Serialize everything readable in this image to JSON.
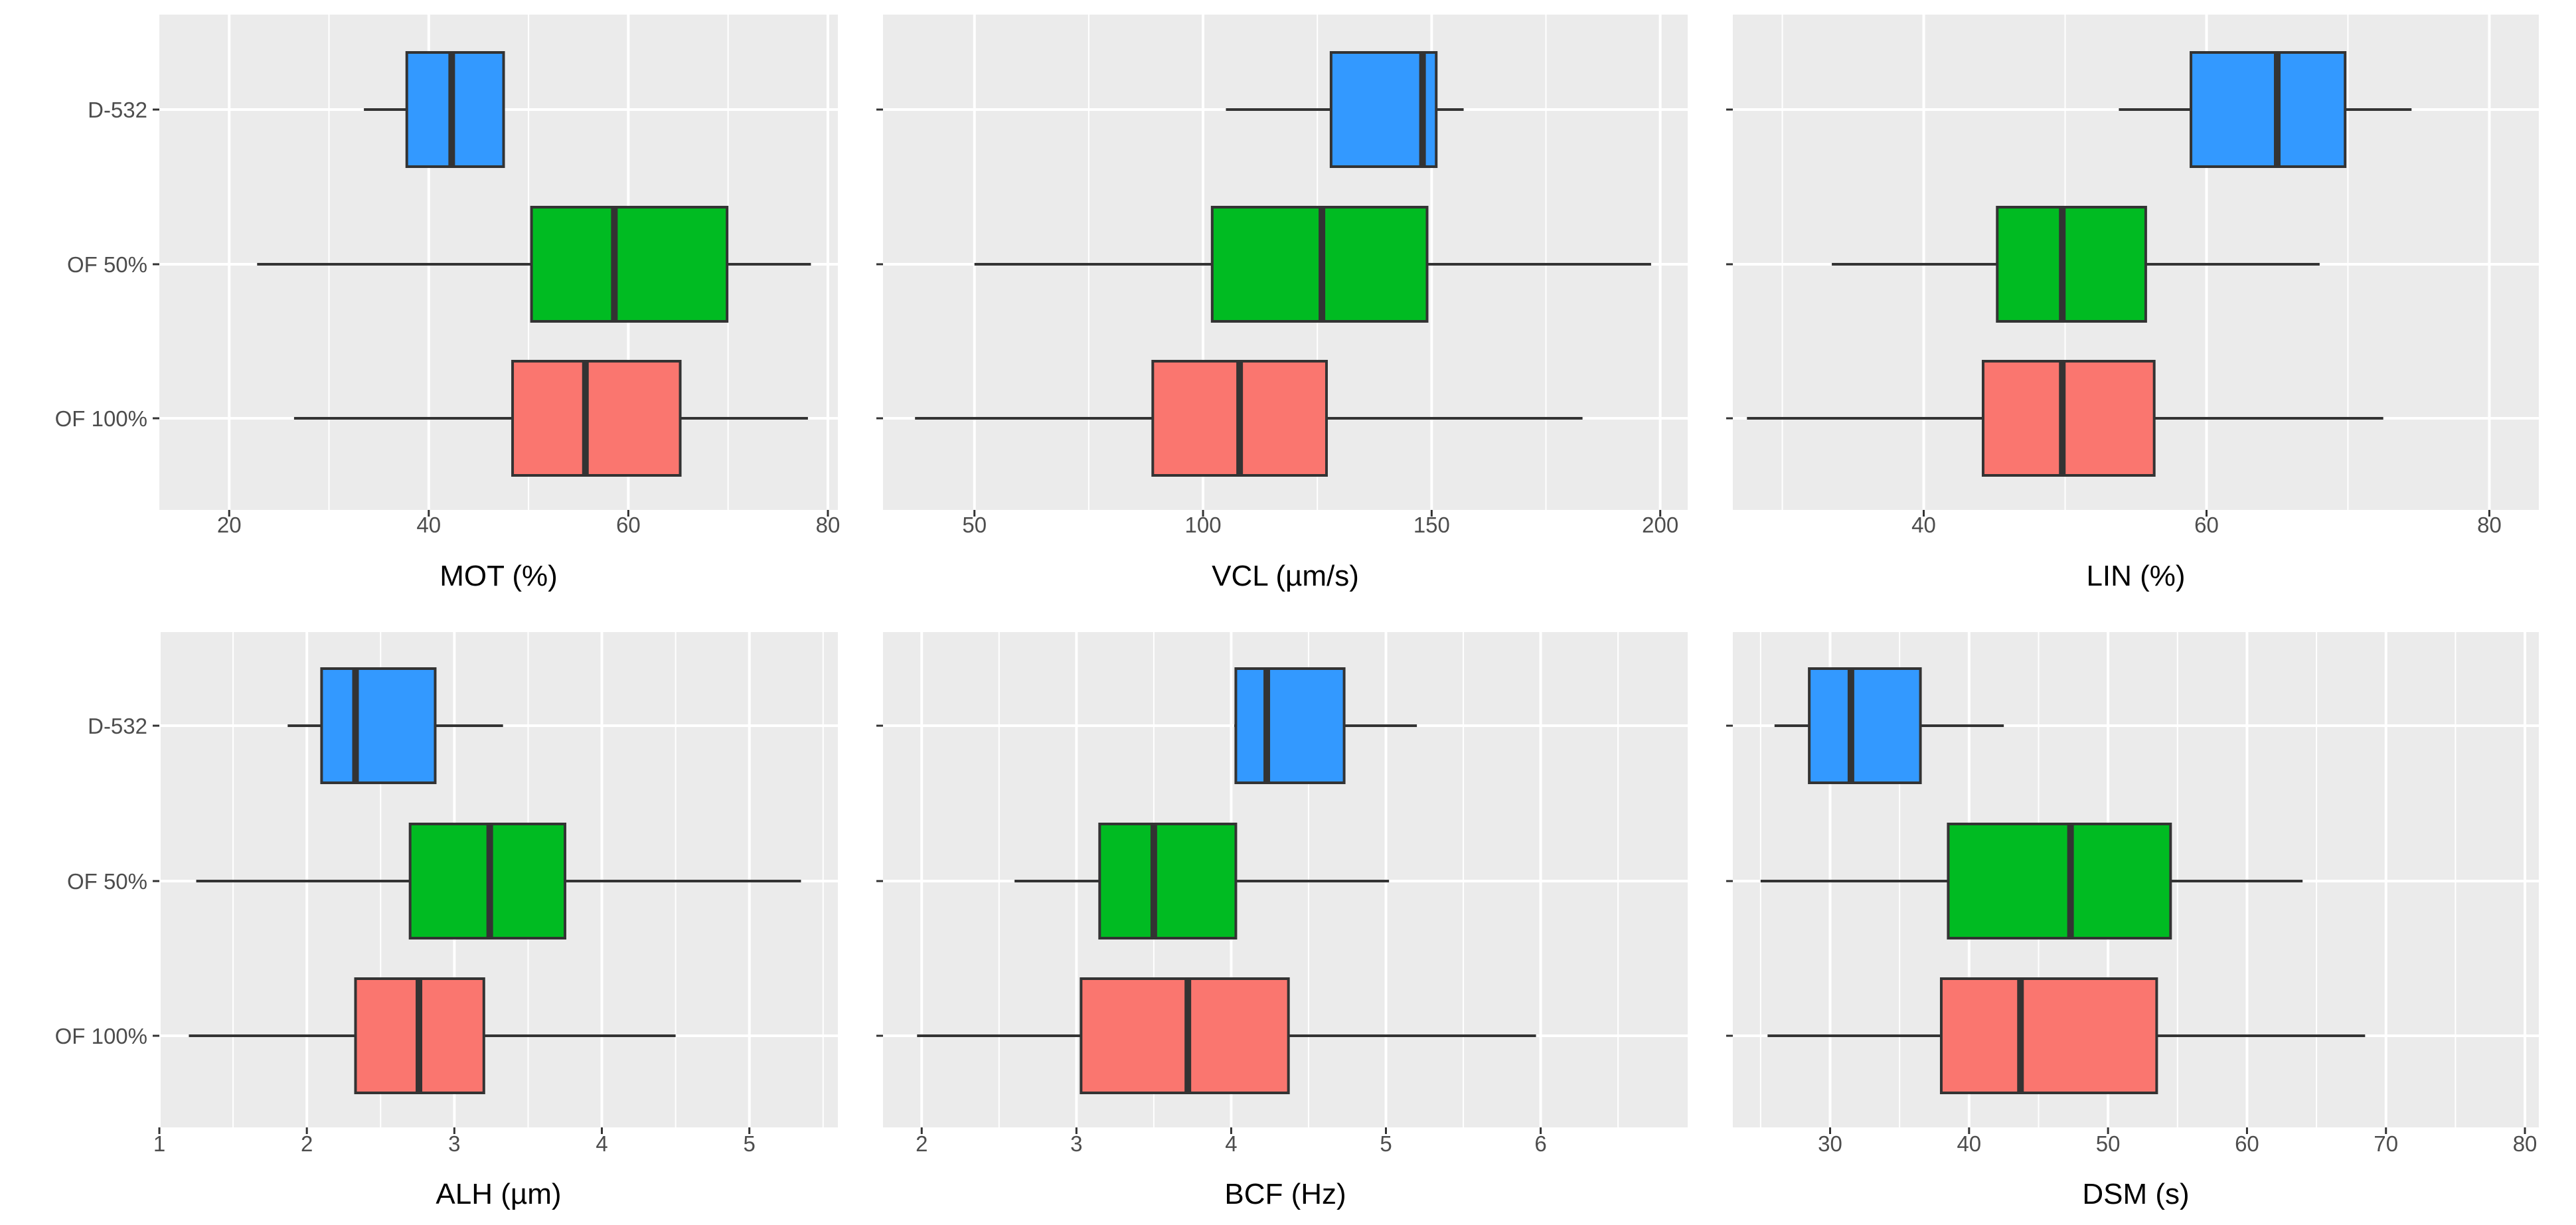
{
  "categories": [
    "D-532",
    "OF 50%",
    "OF 100%"
  ],
  "colors": {
    "D-532": "#3399FF",
    "OF 50%": "#00BB22",
    "OF 100%": "#FA766F"
  },
  "chart_data": [
    {
      "type": "box",
      "xlabel": "MOT (%)",
      "xlim": [
        13,
        81
      ],
      "ticks": [
        20,
        40,
        60,
        80
      ],
      "tick_labels": [
        "20",
        "40",
        "60",
        "80"
      ],
      "boxes": [
        {
          "category": "D-532",
          "min": 33.5,
          "q1": 37.8,
          "median": 42.3,
          "q3": 47.5,
          "max": 47.5
        },
        {
          "category": "OF 50%",
          "min": 22.8,
          "q1": 50.3,
          "median": 58.6,
          "q3": 69.9,
          "max": 78.3
        },
        {
          "category": "OF 100%",
          "min": 26.5,
          "q1": 48.4,
          "median": 55.7,
          "q3": 65.2,
          "max": 78.0
        }
      ]
    },
    {
      "type": "box",
      "xlabel": "VCL (µm/s)",
      "xlim": [
        30,
        206
      ],
      "ticks": [
        50,
        100,
        150,
        200
      ],
      "tick_labels": [
        "50",
        "100",
        "150",
        "200"
      ],
      "boxes": [
        {
          "category": "D-532",
          "min": 105,
          "q1": 128,
          "median": 148,
          "q3": 151,
          "max": 157
        },
        {
          "category": "OF 50%",
          "min": 50,
          "q1": 102,
          "median": 126,
          "q3": 149,
          "max": 198
        },
        {
          "category": "OF 100%",
          "min": 37,
          "q1": 89,
          "median": 108,
          "q3": 127,
          "max": 183
        }
      ]
    },
    {
      "type": "box",
      "xlabel": "LIN (%)",
      "xlim": [
        26.5,
        83.5
      ],
      "ticks": [
        40,
        60,
        80
      ],
      "tick_labels": [
        "40",
        "60",
        "80"
      ],
      "boxes": [
        {
          "category": "D-532",
          "min": 53.8,
          "q1": 58.9,
          "median": 65.0,
          "q3": 69.8,
          "max": 74.5
        },
        {
          "category": "OF 50%",
          "min": 33.5,
          "q1": 45.2,
          "median": 49.8,
          "q3": 55.7,
          "max": 68.0
        },
        {
          "category": "OF 100%",
          "min": 27.5,
          "q1": 44.2,
          "median": 49.8,
          "q3": 56.3,
          "max": 72.5
        }
      ]
    },
    {
      "type": "box",
      "xlabel": "ALH (µm)",
      "xlim": [
        1.0,
        5.6
      ],
      "ticks": [
        1,
        2,
        3,
        4,
        5
      ],
      "tick_labels": [
        "1",
        "2",
        "3",
        "4",
        "5"
      ],
      "boxes": [
        {
          "category": "D-532",
          "min": 1.87,
          "q1": 2.1,
          "median": 2.33,
          "q3": 2.87,
          "max": 3.33
        },
        {
          "category": "OF 50%",
          "min": 1.25,
          "q1": 2.7,
          "median": 3.24,
          "q3": 3.75,
          "max": 5.35
        },
        {
          "category": "OF 100%",
          "min": 1.2,
          "q1": 2.33,
          "median": 2.76,
          "q3": 3.2,
          "max": 4.5
        }
      ]
    },
    {
      "type": "box",
      "xlabel": "BCF (Hz)",
      "xlim": [
        1.75,
        6.95
      ],
      "ticks": [
        2,
        3,
        4,
        5,
        6
      ],
      "tick_labels": [
        "2",
        "3",
        "4",
        "5",
        "6"
      ],
      "boxes": [
        {
          "category": "D-532",
          "min": 4.02,
          "q1": 4.03,
          "median": 4.23,
          "q3": 4.73,
          "max": 5.2
        },
        {
          "category": "OF 50%",
          "min": 2.6,
          "q1": 3.15,
          "median": 3.5,
          "q3": 4.03,
          "max": 5.02
        },
        {
          "category": "OF 100%",
          "min": 1.97,
          "q1": 3.03,
          "median": 3.72,
          "q3": 4.37,
          "max": 5.97
        }
      ]
    },
    {
      "type": "box",
      "xlabel": "DSM (s)",
      "xlim": [
        23,
        81
      ],
      "ticks": [
        30,
        40,
        50,
        60,
        70,
        80
      ],
      "tick_labels": [
        "30",
        "40",
        "50",
        "60",
        "70",
        "80"
      ],
      "boxes": [
        {
          "category": "D-532",
          "min": 26.0,
          "q1": 28.5,
          "median": 31.5,
          "q3": 36.5,
          "max": 42.5
        },
        {
          "category": "OF 50%",
          "min": 25.0,
          "q1": 38.5,
          "median": 47.3,
          "q3": 54.5,
          "max": 64.0
        },
        {
          "category": "OF 100%",
          "min": 25.5,
          "q1": 38.0,
          "median": 43.7,
          "q3": 53.5,
          "max": 68.5
        }
      ]
    }
  ]
}
